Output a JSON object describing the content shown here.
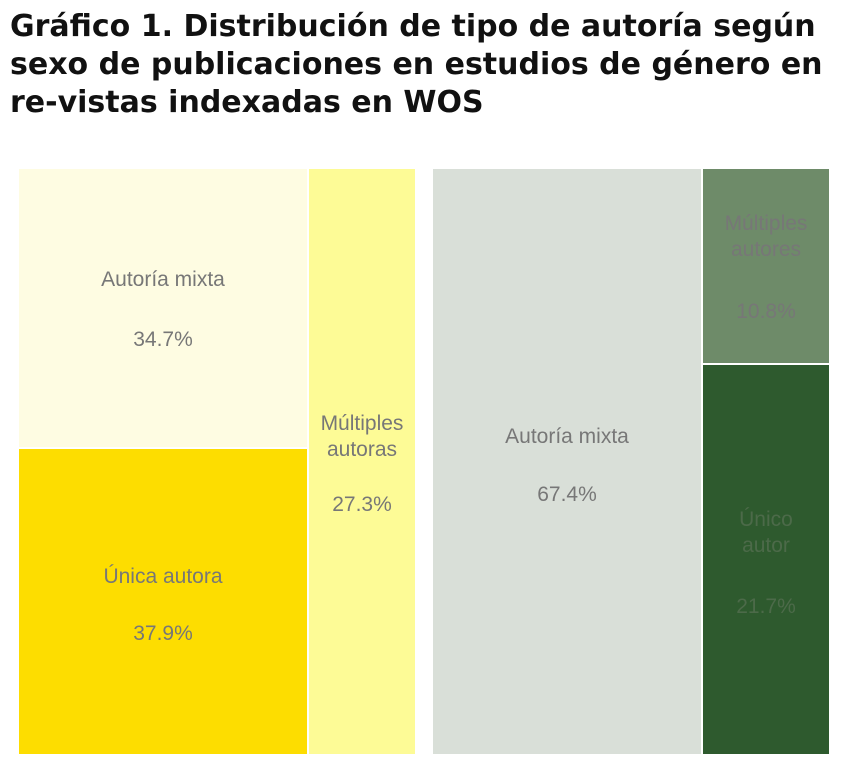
{
  "figure": {
    "title_label": "Gráfico 1.",
    "title_text": "Distribución de tipo de autoría según sexo de publicaciones en estudios de género en re-vistas indexadas en WOS"
  },
  "chart_data": [
    {
      "type": "treemap",
      "values_unit": "%",
      "slices": [
        {
          "label": "Autoría mixta",
          "value": 34.7,
          "value_label": "34.7%",
          "color": "#fefce2"
        },
        {
          "label": "Única autora",
          "value": 37.9,
          "value_label": "37.9%",
          "color": "#fddd00"
        },
        {
          "label": "Múltiples autoras",
          "label_lines": [
            "Múltiples",
            "autoras"
          ],
          "value": 27.3,
          "value_label": "27.3%",
          "color": "#fdfb96"
        }
      ]
    },
    {
      "type": "treemap",
      "values_unit": "%",
      "slices": [
        {
          "label": "Autoría mixta",
          "value": 67.4,
          "value_label": "67.4%",
          "color": "#d9dfd8"
        },
        {
          "label": "Múltiples autores",
          "label_lines": [
            "Múltiples",
            "autores"
          ],
          "value": 10.8,
          "value_label": "10.8%",
          "color": "#6e8b69"
        },
        {
          "label": "Único autor",
          "label_lines": [
            "Único",
            "autor"
          ],
          "value": 21.7,
          "value_label": "21.7%",
          "color": "#2e5a2e"
        }
      ]
    }
  ],
  "colors": {
    "label_on_light": "#777777",
    "label_on_dark": "#4c6a49"
  }
}
